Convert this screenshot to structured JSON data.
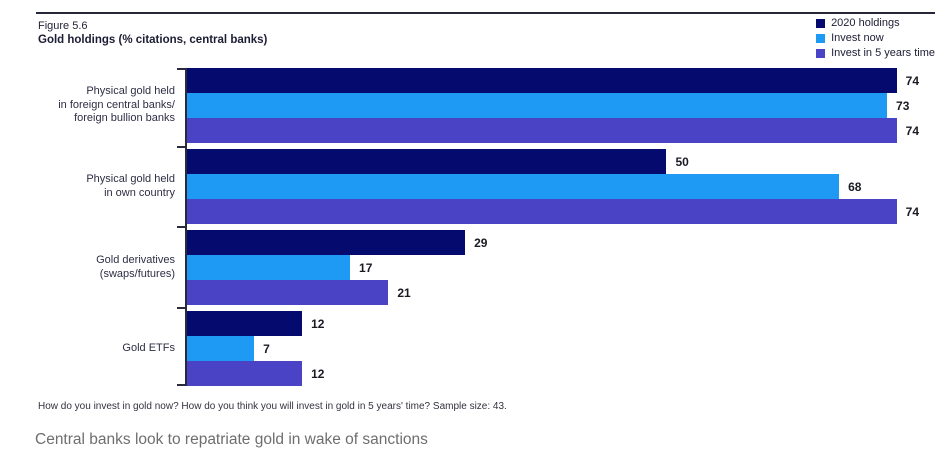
{
  "figure": {
    "number": "Figure 5.6",
    "title": "Gold holdings (% citations, central banks)"
  },
  "legend": {
    "items": [
      {
        "label": "2020 holdings",
        "color": "#050a6e"
      },
      {
        "label": "Invest now",
        "color": "#1e9af5"
      },
      {
        "label": "Invest in 5 years time",
        "color": "#4a43c6"
      }
    ]
  },
  "chart_data": {
    "type": "bar",
    "orientation": "horizontal",
    "title": "Gold holdings (% citations, central banks)",
    "categories": [
      [
        "Physical gold held",
        "in foreign central banks/",
        "foreign bullion banks"
      ],
      [
        "Physical gold held",
        "in own country"
      ],
      [
        "Gold derivatives",
        "(swaps/futures)"
      ],
      [
        "Gold ETFs"
      ]
    ],
    "series": [
      {
        "name": "2020 holdings",
        "color": "#050a6e",
        "values": [
          74,
          50,
          29,
          12
        ]
      },
      {
        "name": "Invest now",
        "color": "#1e9af5",
        "values": [
          73,
          68,
          17,
          7
        ]
      },
      {
        "name": "Invest in 5 years time",
        "color": "#4a43c6",
        "values": [
          74,
          74,
          21,
          12
        ]
      }
    ],
    "xlim": [
      0,
      78
    ],
    "value_labels": true,
    "grid": false,
    "legend_position": "top-right"
  },
  "footnote": "How do you invest in gold now? How do you think you will invest in gold in 5 years' time? Sample size: 43.",
  "caption": "Central banks look to repatriate gold in wake of sanctions"
}
